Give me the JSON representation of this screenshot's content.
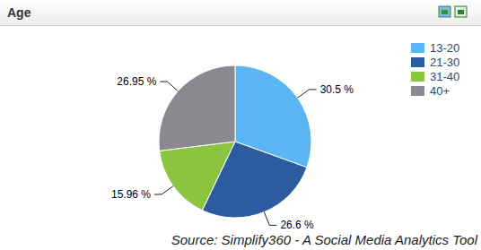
{
  "chart_data": {
    "type": "pie",
    "title": "Age",
    "categories": [
      "13-20",
      "21-30",
      "31-40",
      "40+"
    ],
    "values": [
      30.5,
      26.6,
      15.96,
      26.95
    ],
    "value_labels": [
      "30.5 %",
      "26.6 %",
      "15.96 %",
      "26.95 %"
    ],
    "colors": [
      "#5ab6f2",
      "#2d5b9f",
      "#8bc53f",
      "#8a898f"
    ],
    "data_labels": true,
    "legend": "top-right",
    "annotations": [
      "Source: Simplify360 - A Social Media Analytics Tool"
    ]
  }
}
